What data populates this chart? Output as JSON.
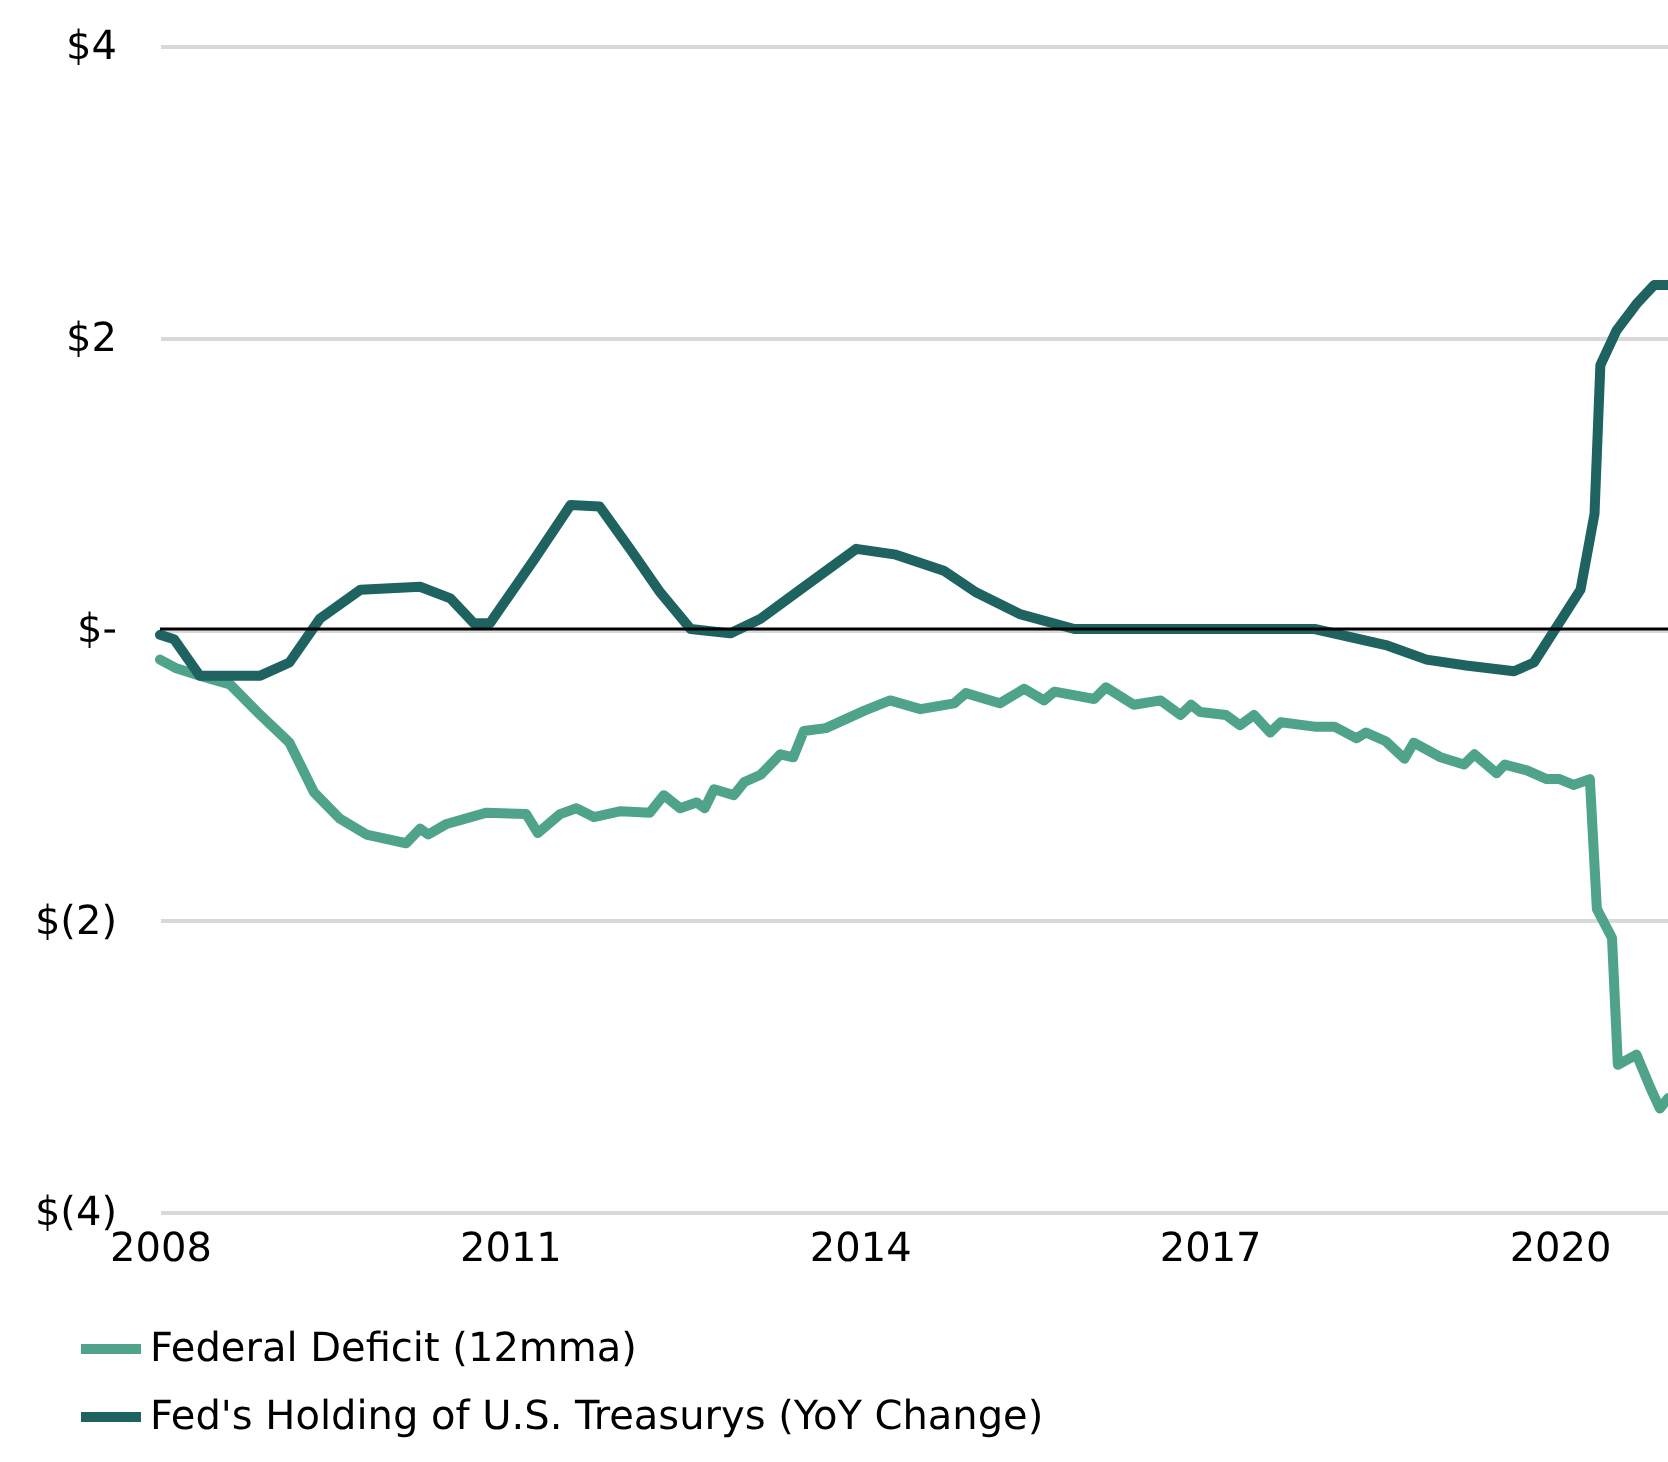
{
  "chart_data": {
    "type": "line",
    "xlim": [
      2008,
      2020.93
    ],
    "xticks": [
      2008,
      2011,
      2014,
      2017,
      2020
    ],
    "ylim": [
      -4,
      4
    ],
    "yticks": [
      {
        "value": 4,
        "label": "$4"
      },
      {
        "value": 2,
        "label": "$2"
      },
      {
        "value": 0,
        "label": "$-"
      },
      {
        "value": -2,
        "label": "$(2)"
      },
      {
        "value": -4,
        "label": "$(4)"
      }
    ],
    "grid": "y",
    "legend": "bottom",
    "marker": "none",
    "line_style": "solid",
    "ref_lines": [
      {
        "axis": "y",
        "value": 0,
        "color": "#000000"
      }
    ],
    "series": [
      {
        "name": "Federal Deficit (12mma)",
        "color": "#4ea38a",
        "x": [
          2008.0,
          2008.14,
          2008.34,
          2008.6,
          2008.86,
          2009.11,
          2009.32,
          2009.54,
          2009.77,
          2010.11,
          2010.23,
          2010.3,
          2010.45,
          2010.8,
          2011.14,
          2011.24,
          2011.43,
          2011.57,
          2011.72,
          2011.95,
          2012.2,
          2012.32,
          2012.46,
          2012.6,
          2012.67,
          2012.75,
          2012.92,
          2013.01,
          2013.15,
          2013.32,
          2013.43,
          2013.52,
          2013.71,
          2014.04,
          2014.26,
          2014.52,
          2014.81,
          2014.91,
          2015.2,
          2015.41,
          2015.58,
          2015.67,
          2016.01,
          2016.11,
          2016.35,
          2016.58,
          2016.75,
          2016.84,
          2016.92,
          2017.14,
          2017.26,
          2017.38,
          2017.52,
          2017.61,
          2017.9,
          2018.07,
          2018.26,
          2018.34,
          2018.51,
          2018.67,
          2018.75,
          2018.98,
          2019.18,
          2019.27,
          2019.46,
          2019.53,
          2019.72,
          2019.89,
          2020.0,
          2020.12,
          2020.26,
          2020.32,
          2020.45,
          2020.5,
          2020.66,
          2020.78,
          2020.86,
          2020.93
        ],
        "values": [
          -0.21,
          -0.27,
          -0.32,
          -0.38,
          -0.59,
          -0.78,
          -1.12,
          -1.3,
          -1.41,
          -1.47,
          -1.37,
          -1.41,
          -1.34,
          -1.26,
          -1.27,
          -1.4,
          -1.27,
          -1.23,
          -1.29,
          -1.25,
          -1.26,
          -1.14,
          -1.23,
          -1.19,
          -1.23,
          -1.1,
          -1.14,
          -1.05,
          -1.0,
          -0.86,
          -0.88,
          -0.7,
          -0.68,
          -0.56,
          -0.49,
          -0.55,
          -0.51,
          -0.44,
          -0.51,
          -0.41,
          -0.49,
          -0.43,
          -0.48,
          -0.4,
          -0.52,
          -0.49,
          -0.59,
          -0.52,
          -0.57,
          -0.59,
          -0.66,
          -0.59,
          -0.71,
          -0.64,
          -0.67,
          -0.67,
          -0.75,
          -0.71,
          -0.77,
          -0.89,
          -0.78,
          -0.88,
          -0.93,
          -0.86,
          -0.99,
          -0.93,
          -0.97,
          -1.03,
          -1.03,
          -1.07,
          -1.03,
          -1.92,
          -2.12,
          -2.99,
          -2.92,
          -3.15,
          -3.29,
          -3.22
        ]
      },
      {
        "name": "Fed's Holding of U.S. Treasurys (YoY Change)",
        "color": "#1e6360",
        "x": [
          2008.0,
          2008.12,
          2008.34,
          2008.86,
          2009.11,
          2009.37,
          2009.72,
          2010.23,
          2010.49,
          2010.69,
          2010.83,
          2011.21,
          2011.52,
          2011.77,
          2012.03,
          2012.29,
          2012.55,
          2012.89,
          2013.15,
          2013.49,
          2013.97,
          2014.31,
          2014.72,
          2015.0,
          2015.38,
          2015.84,
          2017.49,
          2017.9,
          2018.51,
          2018.86,
          2019.2,
          2019.61,
          2019.78,
          2020.18,
          2020.3,
          2020.35,
          2020.49,
          2020.66,
          2020.81,
          2020.93
        ],
        "values": [
          -0.04,
          -0.07,
          -0.32,
          -0.32,
          -0.23,
          0.07,
          0.27,
          0.29,
          0.21,
          0.04,
          0.04,
          0.48,
          0.85,
          0.84,
          0.55,
          0.25,
          0.0,
          -0.03,
          0.07,
          0.27,
          0.55,
          0.51,
          0.4,
          0.25,
          0.1,
          0.0,
          0.0,
          0.0,
          -0.11,
          -0.21,
          -0.25,
          -0.29,
          -0.23,
          0.27,
          0.79,
          1.81,
          2.05,
          2.23,
          2.36,
          2.36
        ]
      }
    ]
  }
}
